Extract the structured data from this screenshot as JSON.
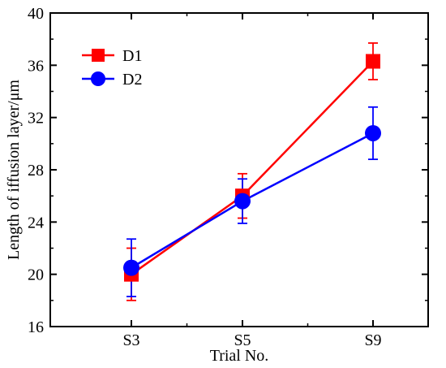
{
  "chart_data": {
    "type": "line",
    "title": "",
    "xlabel": "Trial No.",
    "ylabel": "Length of iffusion layer/μm",
    "categories": [
      "S3",
      "S5",
      "S9"
    ],
    "ylim": [
      16,
      40
    ],
    "yticks": [
      16,
      20,
      24,
      28,
      32,
      36,
      40
    ],
    "grid": false,
    "legend_position": "top-left",
    "series": [
      {
        "name": "D1",
        "marker": "square",
        "color": "#ff0000",
        "values": [
          20.0,
          26.0,
          36.3
        ],
        "error": [
          2.0,
          1.7,
          1.4
        ]
      },
      {
        "name": "D2",
        "marker": "circle",
        "color": "#0000ff",
        "values": [
          20.5,
          25.6,
          30.8
        ],
        "error": [
          2.2,
          1.7,
          2.0
        ]
      }
    ]
  }
}
